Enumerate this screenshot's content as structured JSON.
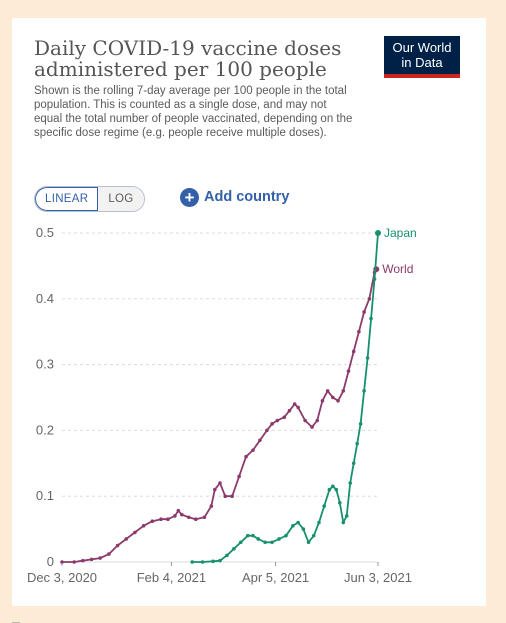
{
  "title": "Daily COVID-19 vaccine doses\nadministered per 100 people",
  "subtitle": "Shown is the rolling 7-day average per 100 people in the total population. This is counted as a single dose, and may not equal the total number of people vaccinated, depending on the specific dose regime (e.g. people receive multiple doses).",
  "logo": {
    "line1": "Our World",
    "line2": "in Data"
  },
  "controls": {
    "linear_label": "LINEAR",
    "log_label": "LOG",
    "add_country_label": "Add country",
    "active_scale": "linear"
  },
  "colors": {
    "World": "#8c3a6b",
    "Japan": "#16906d",
    "grid": "#dddddd",
    "axis_text": "#666666",
    "accent": "#3360a9"
  },
  "chart_data": {
    "type": "line",
    "title": "Daily COVID-19 vaccine doses administered per 100 people",
    "xlabel": "",
    "ylabel": "",
    "x_axis_type": "date",
    "xlim": [
      "2020-12-03",
      "2021-06-03"
    ],
    "ylim": [
      0,
      0.5
    ],
    "y_ticks": [
      "0",
      "0.1",
      "0.2",
      "0.3",
      "0.4",
      "0.5"
    ],
    "x_tick_labels": [
      "Dec 3, 2020",
      "Feb 4, 2021",
      "Apr 5, 2021",
      "Jun 3, 2021"
    ],
    "x_tick_dates": [
      "2020-12-03",
      "2021-02-04",
      "2021-04-05",
      "2021-06-03"
    ],
    "grid": true,
    "legend": "inline-right",
    "series": [
      {
        "name": "World",
        "points": [
          [
            "2020-12-03",
            0.0
          ],
          [
            "2020-12-10",
            0.0
          ],
          [
            "2020-12-15",
            0.002
          ],
          [
            "2020-12-20",
            0.004
          ],
          [
            "2020-12-25",
            0.006
          ],
          [
            "2020-12-30",
            0.012
          ],
          [
            "2021-01-04",
            0.025
          ],
          [
            "2021-01-09",
            0.035
          ],
          [
            "2021-01-14",
            0.045
          ],
          [
            "2021-01-19",
            0.055
          ],
          [
            "2021-01-24",
            0.062
          ],
          [
            "2021-01-29",
            0.065
          ],
          [
            "2021-02-02",
            0.065
          ],
          [
            "2021-02-06",
            0.07
          ],
          [
            "2021-02-08",
            0.078
          ],
          [
            "2021-02-10",
            0.072
          ],
          [
            "2021-02-14",
            0.068
          ],
          [
            "2021-02-18",
            0.065
          ],
          [
            "2021-02-23",
            0.068
          ],
          [
            "2021-02-27",
            0.085
          ],
          [
            "2021-03-01",
            0.11
          ],
          [
            "2021-03-04",
            0.12
          ],
          [
            "2021-03-07",
            0.1
          ],
          [
            "2021-03-11",
            0.1
          ],
          [
            "2021-03-15",
            0.13
          ],
          [
            "2021-03-19",
            0.16
          ],
          [
            "2021-03-23",
            0.17
          ],
          [
            "2021-03-27",
            0.185
          ],
          [
            "2021-03-31",
            0.2
          ],
          [
            "2021-04-03",
            0.21
          ],
          [
            "2021-04-06",
            0.215
          ],
          [
            "2021-04-10",
            0.22
          ],
          [
            "2021-04-13",
            0.23
          ],
          [
            "2021-04-16",
            0.24
          ],
          [
            "2021-04-18",
            0.235
          ],
          [
            "2021-04-22",
            0.215
          ],
          [
            "2021-04-26",
            0.205
          ],
          [
            "2021-04-29",
            0.215
          ],
          [
            "2021-05-02",
            0.245
          ],
          [
            "2021-05-05",
            0.26
          ],
          [
            "2021-05-08",
            0.25
          ],
          [
            "2021-05-11",
            0.245
          ],
          [
            "2021-05-14",
            0.26
          ],
          [
            "2021-05-17",
            0.29
          ],
          [
            "2021-05-20",
            0.32
          ],
          [
            "2021-05-23",
            0.35
          ],
          [
            "2021-05-26",
            0.38
          ],
          [
            "2021-05-29",
            0.4
          ],
          [
            "2021-06-01",
            0.44
          ],
          [
            "2021-06-02",
            0.445
          ]
        ]
      },
      {
        "name": "Japan",
        "points": [
          [
            "2021-02-16",
            0.0
          ],
          [
            "2021-02-22",
            0.0
          ],
          [
            "2021-02-28",
            0.001
          ],
          [
            "2021-03-04",
            0.002
          ],
          [
            "2021-03-08",
            0.01
          ],
          [
            "2021-03-12",
            0.02
          ],
          [
            "2021-03-16",
            0.03
          ],
          [
            "2021-03-20",
            0.04
          ],
          [
            "2021-03-23",
            0.04
          ],
          [
            "2021-03-26",
            0.035
          ],
          [
            "2021-03-30",
            0.03
          ],
          [
            "2021-04-03",
            0.03
          ],
          [
            "2021-04-07",
            0.035
          ],
          [
            "2021-04-11",
            0.04
          ],
          [
            "2021-04-15",
            0.055
          ],
          [
            "2021-04-18",
            0.06
          ],
          [
            "2021-04-21",
            0.05
          ],
          [
            "2021-04-24",
            0.03
          ],
          [
            "2021-04-27",
            0.04
          ],
          [
            "2021-04-30",
            0.06
          ],
          [
            "2021-05-03",
            0.085
          ],
          [
            "2021-05-06",
            0.11
          ],
          [
            "2021-05-08",
            0.115
          ],
          [
            "2021-05-10",
            0.11
          ],
          [
            "2021-05-12",
            0.09
          ],
          [
            "2021-05-14",
            0.06
          ],
          [
            "2021-05-16",
            0.07
          ],
          [
            "2021-05-18",
            0.12
          ],
          [
            "2021-05-20",
            0.15
          ],
          [
            "2021-05-22",
            0.18
          ],
          [
            "2021-05-24",
            0.21
          ],
          [
            "2021-05-26",
            0.26
          ],
          [
            "2021-05-28",
            0.31
          ],
          [
            "2021-05-30",
            0.37
          ],
          [
            "2021-06-01",
            0.43
          ],
          [
            "2021-06-03",
            0.5
          ]
        ]
      }
    ]
  }
}
